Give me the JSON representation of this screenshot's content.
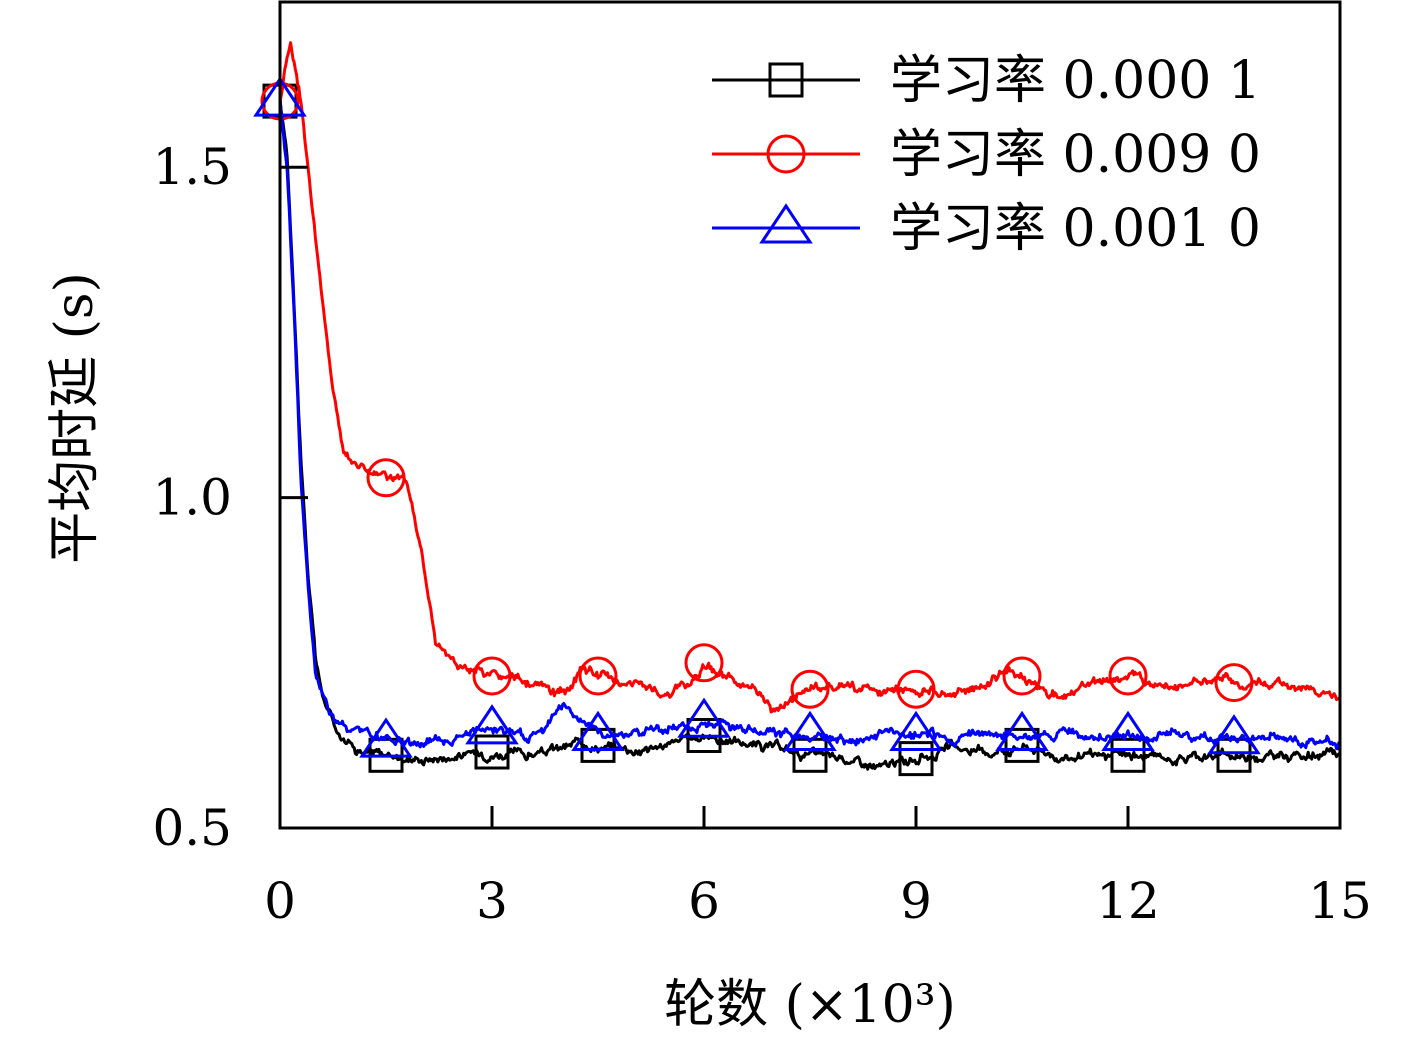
{
  "chart_data": {
    "type": "line",
    "xlabel": "轮数 (×10³)",
    "ylabel": "平均时延 (s)",
    "xlim": [
      0,
      15
    ],
    "ylim": [
      0.5,
      1.75
    ],
    "x_ticks": [
      "0",
      "3",
      "6",
      "9",
      "12",
      "15"
    ],
    "x_tick_values": [
      0,
      3,
      6,
      9,
      12,
      15
    ],
    "y_ticks": [
      "0.5",
      "1.0",
      "1.5"
    ],
    "y_tick_values": [
      0.5,
      1.0,
      1.5
    ],
    "grid": false,
    "legend_position": "top-right",
    "series": [
      {
        "name": "学习率 0.000 1",
        "color": "#000000",
        "marker": "square",
        "marker_x": [
          0,
          1.5,
          3,
          4.5,
          6,
          7.5,
          9,
          10.5,
          12,
          13.5
        ],
        "x": [
          0,
          0.1,
          0.2,
          0.3,
          0.4,
          0.5,
          0.6,
          0.8,
          1.0,
          1.2,
          1.5,
          2,
          2.5,
          3,
          3.5,
          4,
          4.3,
          4.5,
          5,
          5.5,
          6,
          6.5,
          7,
          7.5,
          8,
          8.5,
          9,
          9.5,
          10,
          10.5,
          11,
          11.5,
          12,
          12.5,
          13,
          13.5,
          14,
          14.5,
          15
        ],
        "y": [
          1.6,
          1.52,
          1.3,
          1.05,
          0.88,
          0.76,
          0.7,
          0.65,
          0.63,
          0.615,
          0.61,
          0.605,
          0.61,
          0.615,
          0.61,
          0.62,
          0.63,
          0.625,
          0.62,
          0.625,
          0.64,
          0.63,
          0.62,
          0.61,
          0.605,
          0.59,
          0.605,
          0.62,
          0.615,
          0.625,
          0.61,
          0.605,
          0.61,
          0.605,
          0.61,
          0.61,
          0.61,
          0.61,
          0.61
        ]
      },
      {
        "name": "学习率 0.009 0",
        "color": "#ff0000",
        "marker": "circle",
        "marker_x": [
          0,
          1.5,
          3,
          4.5,
          6,
          7.5,
          9,
          10.5,
          12,
          13.5
        ],
        "x": [
          0,
          0.1,
          0.15,
          0.3,
          0.5,
          0.7,
          0.9,
          1.2,
          1.5,
          1.8,
          2.0,
          2.2,
          2.5,
          3.0,
          3.5,
          4.0,
          4.3,
          4.5,
          5.0,
          5.5,
          5.8,
          6.0,
          6.5,
          7.0,
          7.5,
          8.0,
          8.5,
          9.0,
          9.5,
          10.0,
          10.2,
          10.5,
          11.0,
          11.5,
          12.0,
          12.5,
          13.0,
          13.5,
          14.0,
          14.5,
          15.0
        ],
        "y": [
          1.6,
          1.67,
          1.69,
          1.6,
          1.4,
          1.2,
          1.07,
          1.045,
          1.03,
          1.02,
          0.92,
          0.78,
          0.75,
          0.73,
          0.72,
          0.7,
          0.74,
          0.73,
          0.72,
          0.7,
          0.72,
          0.75,
          0.72,
          0.68,
          0.71,
          0.72,
          0.7,
          0.71,
          0.7,
          0.72,
          0.74,
          0.73,
          0.7,
          0.72,
          0.73,
          0.72,
          0.72,
          0.72,
          0.72,
          0.71,
          0.7
        ]
      },
      {
        "name": "学习率 0.001 0",
        "color": "#0000ff",
        "marker": "triangle",
        "marker_x": [
          0,
          1.5,
          3,
          4.5,
          6,
          7.5,
          9,
          10.5,
          12,
          13.5
        ],
        "x": [
          0,
          0.1,
          0.2,
          0.3,
          0.4,
          0.5,
          0.6,
          0.8,
          1.0,
          1.5,
          2.0,
          2.5,
          3.0,
          3.5,
          3.8,
          4.0,
          4.3,
          4.5,
          5.0,
          5.5,
          6.0,
          6.5,
          7.0,
          7.5,
          8.0,
          8.5,
          9.0,
          9.5,
          10.0,
          10.5,
          11.0,
          11.5,
          12.0,
          12.5,
          13.0,
          13.5,
          14.0,
          14.5,
          15.0
        ],
        "y": [
          1.6,
          1.5,
          1.28,
          1.02,
          0.86,
          0.74,
          0.7,
          0.66,
          0.645,
          0.63,
          0.63,
          0.64,
          0.65,
          0.64,
          0.66,
          0.69,
          0.66,
          0.64,
          0.645,
          0.65,
          0.66,
          0.655,
          0.64,
          0.64,
          0.625,
          0.64,
          0.64,
          0.635,
          0.64,
          0.64,
          0.645,
          0.64,
          0.64,
          0.645,
          0.63,
          0.635,
          0.64,
          0.63,
          0.63
        ]
      }
    ]
  }
}
